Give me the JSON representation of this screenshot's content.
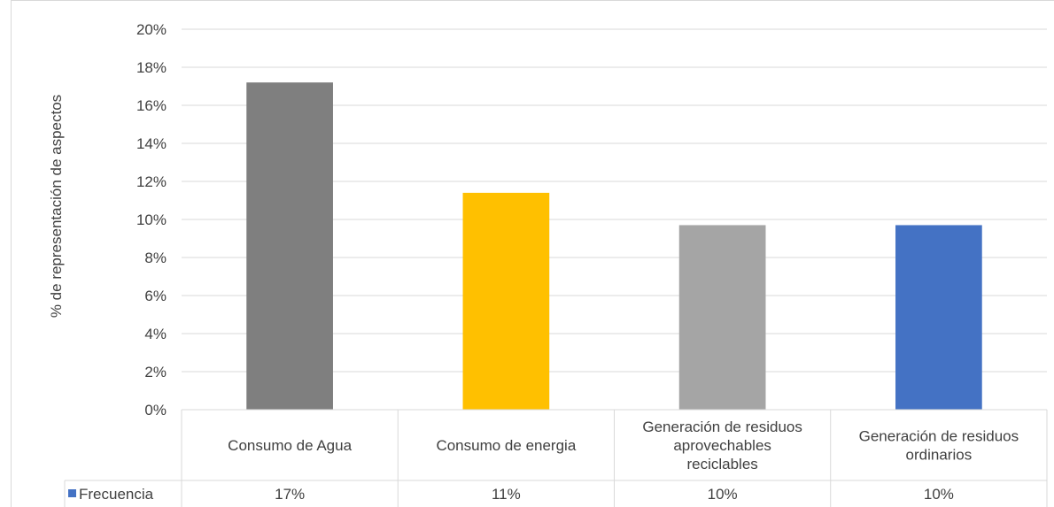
{
  "chart_data": {
    "type": "bar",
    "title": "",
    "xlabel": "",
    "ylabel": "% de representación de aspectos",
    "ylim": [
      0,
      20
    ],
    "yticks": [
      "0%",
      "2%",
      "4%",
      "6%",
      "8%",
      "10%",
      "12%",
      "14%",
      "16%",
      "18%",
      "20%"
    ],
    "categories": [
      [
        "Consumo de Agua"
      ],
      [
        "Consumo de energia"
      ],
      [
        "Generación de residuos",
        "aprovechables",
        "reciclables"
      ],
      [
        "Generación de residuos",
        "ordinarios"
      ]
    ],
    "series": [
      {
        "name": "Frecuencia",
        "values": [
          17.2,
          11.4,
          9.7,
          9.7
        ],
        "color": "#4472c4"
      }
    ],
    "bar_colors": [
      "#7f7f7f",
      "#ffc000",
      "#a5a5a5",
      "#4472c4"
    ],
    "data_table": {
      "row_label": "Frecuencia",
      "legend_key_color": "#4472c4",
      "cells": [
        "17%",
        "11%",
        "10%",
        "10%"
      ]
    },
    "grid": true,
    "legend": "data-table"
  }
}
